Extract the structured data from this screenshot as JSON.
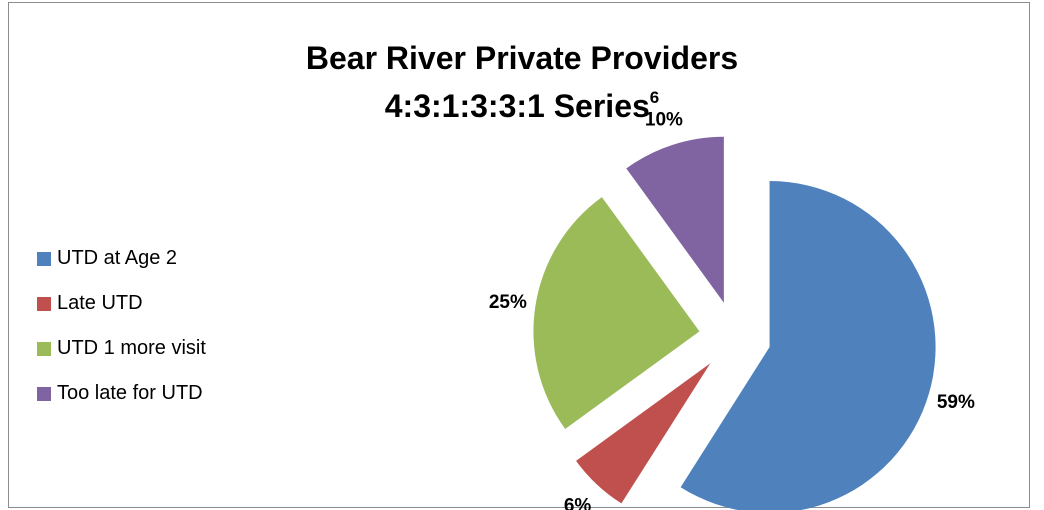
{
  "chart_data": {
    "type": "pie",
    "title_line1": "Bear River Private Providers",
    "title_line2": "4:3:1:3:3:1 Series",
    "title_superscript": "6",
    "slices": [
      {
        "label": "UTD at Age 2",
        "value": 59,
        "display": "59%",
        "color": "#4f81bd"
      },
      {
        "label": "Late UTD",
        "value": 6,
        "display": "6%",
        "color": "#c0504d"
      },
      {
        "label": "UTD 1 more visit",
        "value": 25,
        "display": "25%",
        "color": "#9bbb59"
      },
      {
        "label": "Too late for UTD",
        "value": 10,
        "display": "10%",
        "color": "#8064a2"
      }
    ],
    "legend_position": "left",
    "exploded": true
  }
}
